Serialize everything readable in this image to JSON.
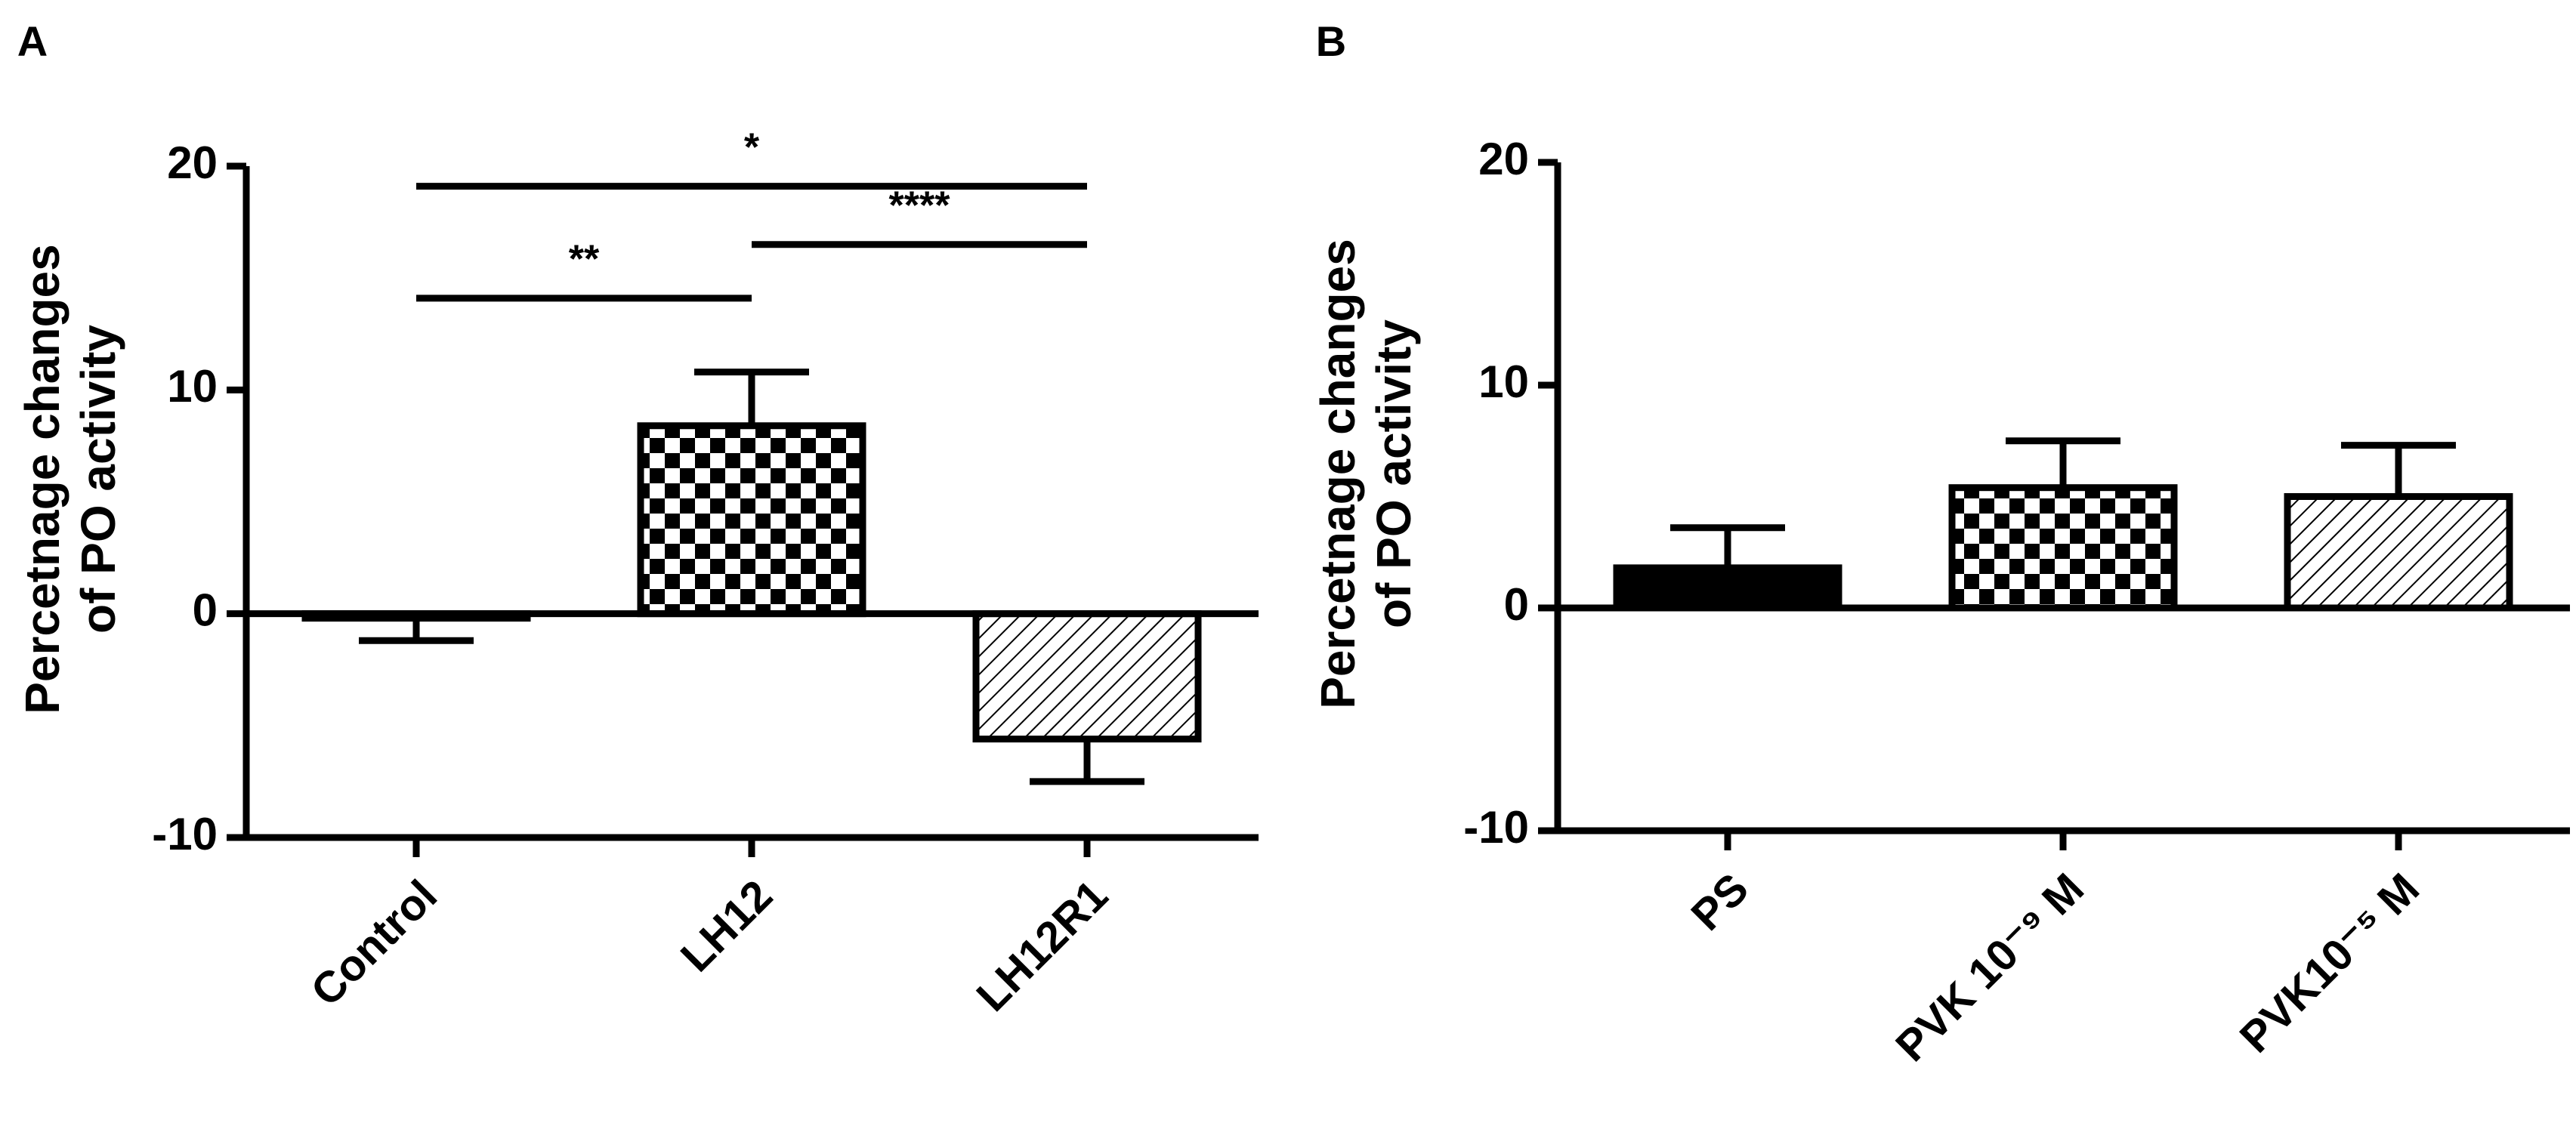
{
  "chart_data": [
    {
      "type": "bar",
      "panel_label": "A",
      "ylabel": [
        "Percetnage changes",
        "of PO activity"
      ],
      "categories": [
        "Control",
        "LH12",
        "LH12R1"
      ],
      "values": [
        -0.2,
        8.4,
        -5.6
      ],
      "errors": [
        1.0,
        2.4,
        1.9
      ],
      "patterns": [
        "open",
        "checker",
        "hatch"
      ],
      "color": "#000000",
      "ylim": [
        -10,
        20
      ],
      "yticks": [
        -10,
        0,
        10,
        20
      ],
      "annotations": [
        {
          "text": "**",
          "from": 0,
          "to": 1,
          "y": 14.1
        },
        {
          "text": "****",
          "from": 1,
          "to": 2,
          "y": 16.5
        },
        {
          "text": "*",
          "from": 0,
          "to": 2,
          "y": 19.1
        }
      ]
    },
    {
      "type": "bar",
      "panel_label": "B",
      "ylabel": [
        "Percetnage changes",
        "of PO activity"
      ],
      "categories": [
        "PS",
        "PVK 10⁻⁹ M",
        "PVK10⁻⁵ M"
      ],
      "values": [
        1.8,
        5.4,
        5.0
      ],
      "errors": [
        1.8,
        2.1,
        2.3
      ],
      "patterns": [
        "solid",
        "checker",
        "hatch"
      ],
      "color": "#000000",
      "ylim": [
        -10,
        20
      ],
      "yticks": [
        -10,
        0,
        10,
        20
      ],
      "annotations": []
    }
  ]
}
